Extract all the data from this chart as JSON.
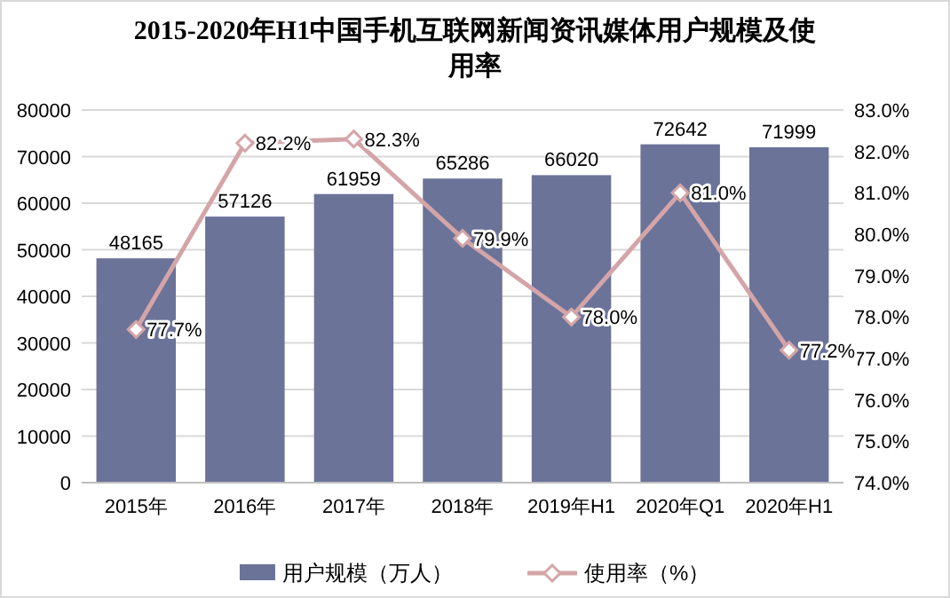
{
  "chart_data": {
    "type": "bar",
    "title": "2015-2020年H1中国手机互联网新闻资讯媒体用户规模及使用率",
    "categories": [
      "2015年",
      "2016年",
      "2017年",
      "2018年",
      "2019年H1",
      "2020年Q1",
      "2020年H1"
    ],
    "series": [
      {
        "name": "用户规模（万人）",
        "color": "#6b7399",
        "values": [
          48165,
          57126,
          61959,
          65286,
          66020,
          72642,
          71999
        ]
      },
      {
        "name": "使用率（%）",
        "type": "line",
        "axis": "y2",
        "color": "#d4a5a8",
        "marker": "diamond",
        "values": [
          77.7,
          82.2,
          82.3,
          79.9,
          78.0,
          81.0,
          77.2
        ],
        "value_labels": [
          "77.7%",
          "82.2%",
          "82.3%",
          "79.9%",
          "78.0%",
          "81.0%",
          "77.2%"
        ]
      }
    ],
    "data_labels": true,
    "ylim": [
      0,
      80000
    ],
    "yticks": [
      0,
      10000,
      20000,
      30000,
      40000,
      50000,
      60000,
      70000,
      80000
    ],
    "y2lim": [
      74,
      83
    ],
    "y2ticks": [
      {
        "value": 74,
        "label": "74.0%"
      },
      {
        "value": 75,
        "label": "75.0%"
      },
      {
        "value": 76,
        "label": "76.0%"
      },
      {
        "value": 77,
        "label": "77.0%"
      },
      {
        "value": 78,
        "label": "78.0%"
      },
      {
        "value": 79,
        "label": "79.0%"
      },
      {
        "value": 80,
        "label": "80.0%"
      },
      {
        "value": 81,
        "label": "81.0%"
      },
      {
        "value": 82,
        "label": "82.0%"
      },
      {
        "value": 83,
        "label": "83.0%"
      }
    ],
    "grid": "y",
    "legend": "bottom"
  }
}
